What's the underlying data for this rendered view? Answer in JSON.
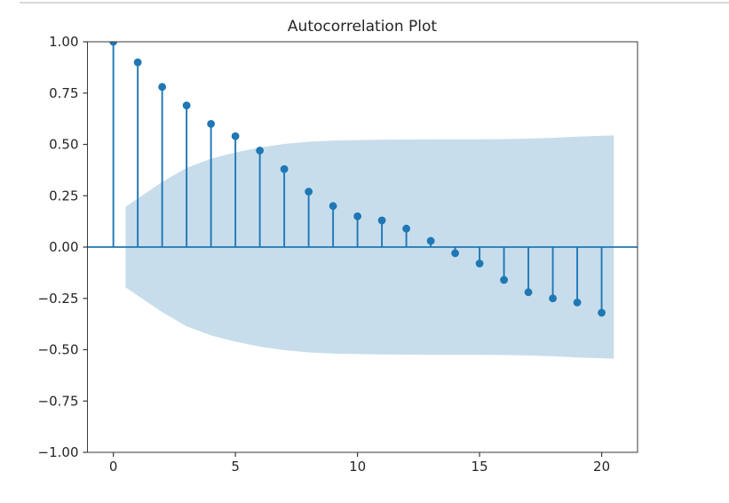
{
  "window": {
    "background_color": "#ffffff",
    "top_rule_color": "#d9d9d9"
  },
  "chart_data": {
    "type": "scatter",
    "subtype": "stem-autocorrelation",
    "title": "Autocorrelation Plot",
    "xlabel": "",
    "ylabel": "",
    "grid": false,
    "legend": null,
    "x": [
      0,
      1,
      2,
      3,
      4,
      5,
      6,
      7,
      8,
      9,
      10,
      11,
      12,
      13,
      14,
      15,
      16,
      17,
      18,
      19,
      20
    ],
    "values": [
      1.0,
      0.9,
      0.78,
      0.69,
      0.6,
      0.54,
      0.47,
      0.38,
      0.27,
      0.2,
      0.15,
      0.13,
      0.09,
      0.03,
      -0.03,
      -0.08,
      -0.16,
      -0.22,
      -0.25,
      -0.27,
      -0.32
    ],
    "confidence_band": {
      "x": [
        0.5,
        2,
        3,
        4,
        5,
        6,
        7,
        8,
        9,
        10,
        11,
        12,
        13,
        14,
        15,
        16,
        17,
        18,
        19,
        20.5
      ],
      "upper": [
        0.196,
        0.317,
        0.386,
        0.43,
        0.461,
        0.485,
        0.502,
        0.513,
        0.519,
        0.521,
        0.523,
        0.524,
        0.525,
        0.525,
        0.525,
        0.526,
        0.528,
        0.532,
        0.538,
        0.544
      ],
      "lower": [
        -0.196,
        -0.317,
        -0.386,
        -0.43,
        -0.461,
        -0.485,
        -0.502,
        -0.513,
        -0.519,
        -0.521,
        -0.523,
        -0.524,
        -0.525,
        -0.525,
        -0.525,
        -0.526,
        -0.528,
        -0.532,
        -0.538,
        -0.544
      ]
    },
    "xlim": [
      -1.06,
      21.47
    ],
    "ylim": [
      -1.0,
      1.0
    ],
    "x_ticks": {
      "values": [
        0,
        5,
        10,
        15,
        20
      ],
      "labels": [
        "0",
        "5",
        "10",
        "15",
        "20"
      ]
    },
    "y_ticks": {
      "values": [
        1.0,
        0.75,
        0.5,
        0.25,
        0.0,
        -0.25,
        -0.5,
        -0.75,
        -1.0
      ],
      "labels": [
        "1.00",
        "0.75",
        "0.50",
        "0.25",
        "0.00",
        "−0.25",
        "−0.50",
        "−0.75",
        "−1.00"
      ]
    },
    "colors": {
      "stem": "#1f77b4",
      "marker": "#1f77b4",
      "zero_line": "#1f77b4",
      "band": "rgba(31,119,180,0.25)",
      "spine": "#3a3a3a",
      "tick_text": "#262626",
      "title_text": "#262626"
    }
  }
}
